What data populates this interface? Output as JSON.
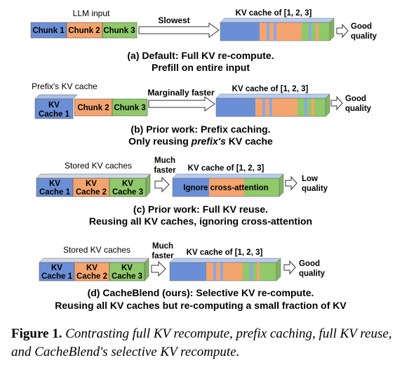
{
  "colors": {
    "blue": "#6b8fd6",
    "orange": "#f4a46e",
    "green": "#8fc96a",
    "blue_light": "#8aa8e4"
  },
  "panel_a": {
    "top_label": "LLM input",
    "chunks": [
      "Chunk 1",
      "Chunk 2",
      "Chunk 3"
    ],
    "arrow_label": "Slowest",
    "kv_label": "KV cache of [1, 2, 3]",
    "quality": [
      "Good",
      "quality"
    ],
    "caption": [
      "(a) Default: Full KV re-compute.",
      "Prefill on entire input"
    ]
  },
  "panel_b": {
    "top_label": "Prefix's KV cache",
    "kv1": [
      "KV",
      "Cache 1"
    ],
    "chunks": [
      "Chunk 2",
      "Chunk 3"
    ],
    "arrow_label": "Marginally faster",
    "kv_label": "KV cache of [1, 2, 3]",
    "quality": [
      "Good",
      "quality"
    ],
    "caption_line1": "(b) Prior work: Prefix caching.",
    "caption_line2_pre": "Only reusing ",
    "caption_line2_em": "prefix's",
    "caption_line2_post": " KV cache"
  },
  "panel_c": {
    "top_label": "Stored KV caches",
    "kvs": [
      [
        "KV",
        "Cache 1"
      ],
      [
        "KV",
        "Cache 2"
      ],
      [
        "KV",
        "Cache 3"
      ]
    ],
    "arrow_label": [
      "Much",
      "faster"
    ],
    "kv_label": "KV cache of [1, 2, 3]",
    "ignore_label": "Ignore cross-attention",
    "quality": [
      "Low",
      "quality"
    ],
    "caption": [
      "(c) Prior work: Full KV reuse.",
      "Reusing all KV caches, ignoring cross-attention"
    ]
  },
  "panel_d": {
    "top_label": "Stored KV caches",
    "kvs": [
      [
        "KV",
        "Cache 1"
      ],
      [
        "KV",
        "Cache 2"
      ],
      [
        "KV",
        "Cache 3"
      ]
    ],
    "arrow_label": [
      "Much",
      "faster"
    ],
    "kv_label": "KV cache of [1, 2, 3]",
    "quality": [
      "Good",
      "quality"
    ],
    "caption": [
      "(d) CacheBlend (ours): Selective KV re-compute.",
      "Reusing all KV caches but re-computing a small fraction of KV"
    ]
  },
  "figure_caption": {
    "label": "Figure 1.",
    "text": "Contrasting full KV recompute, prefix caching, full KV reuse, and CacheBlend's selective KV recompute."
  }
}
